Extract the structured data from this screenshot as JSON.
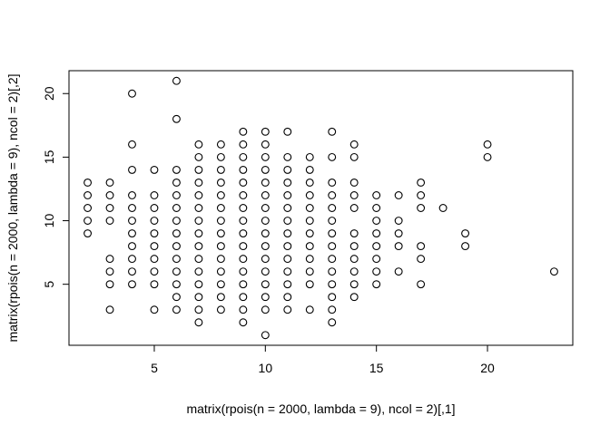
{
  "chart_data": {
    "type": "scatter",
    "title": "",
    "xlabel": "matrix(rpois(n = 2000, lambda = 9), ncol = 2)[,1]",
    "ylabel": "matrix(rpois(n = 2000, lambda = 9), ncol = 2)[,2]",
    "xlim": [
      1.16,
      23.84
    ],
    "ylim": [
      0.2,
      21.8
    ],
    "x_ticks": [
      5,
      10,
      15,
      20
    ],
    "y_ticks": [
      5,
      10,
      15,
      20
    ],
    "x_tick_labels": [
      "5",
      "10",
      "15",
      "20"
    ],
    "y_tick_labels": [
      "5",
      "10",
      "15",
      "20"
    ],
    "grid": false,
    "marker": "open-circle",
    "columns": [
      {
        "x": 2,
        "y": [
          9,
          10,
          11,
          12,
          13
        ]
      },
      {
        "x": 3,
        "y": [
          3,
          5,
          6,
          7,
          10,
          11,
          12,
          13
        ]
      },
      {
        "x": 4,
        "y": [
          5,
          6,
          7,
          8,
          9,
          10,
          11,
          12,
          14,
          16,
          20
        ]
      },
      {
        "x": 5,
        "y": [
          3,
          5,
          6,
          7,
          8,
          9,
          10,
          11,
          12,
          14
        ]
      },
      {
        "x": 6,
        "y": [
          3,
          4,
          5,
          6,
          7,
          8,
          9,
          10,
          11,
          12,
          13,
          14,
          18,
          21
        ]
      },
      {
        "x": 7,
        "y": [
          2,
          3,
          4,
          5,
          6,
          7,
          8,
          9,
          10,
          11,
          12,
          13,
          14,
          15,
          16
        ]
      },
      {
        "x": 8,
        "y": [
          3,
          4,
          5,
          6,
          7,
          8,
          9,
          10,
          11,
          12,
          13,
          14,
          15,
          16
        ]
      },
      {
        "x": 9,
        "y": [
          2,
          3,
          4,
          5,
          6,
          7,
          8,
          9,
          10,
          11,
          12,
          13,
          14,
          15,
          16,
          17
        ]
      },
      {
        "x": 10,
        "y": [
          1,
          3,
          4,
          5,
          6,
          7,
          8,
          9,
          10,
          11,
          12,
          13,
          14,
          15,
          16,
          17
        ]
      },
      {
        "x": 11,
        "y": [
          3,
          4,
          5,
          6,
          7,
          8,
          9,
          10,
          11,
          12,
          13,
          14,
          15,
          17
        ]
      },
      {
        "x": 12,
        "y": [
          3,
          5,
          6,
          7,
          8,
          9,
          10,
          11,
          12,
          13,
          14,
          15
        ]
      },
      {
        "x": 13,
        "y": [
          2,
          3,
          4,
          5,
          6,
          7,
          8,
          9,
          10,
          11,
          12,
          13,
          15,
          17
        ]
      },
      {
        "x": 14,
        "y": [
          4,
          5,
          6,
          7,
          8,
          9,
          11,
          12,
          13,
          15,
          16
        ]
      },
      {
        "x": 15,
        "y": [
          5,
          6,
          7,
          8,
          9,
          10,
          11,
          12
        ]
      },
      {
        "x": 16,
        "y": [
          6,
          8,
          9,
          10,
          12
        ]
      },
      {
        "x": 17,
        "y": [
          5,
          7,
          8,
          11,
          12,
          13
        ]
      },
      {
        "x": 18,
        "y": [
          11
        ]
      },
      {
        "x": 19,
        "y": [
          8,
          9
        ]
      },
      {
        "x": 20,
        "y": [
          15,
          16
        ]
      },
      {
        "x": 23,
        "y": [
          6
        ]
      }
    ]
  }
}
